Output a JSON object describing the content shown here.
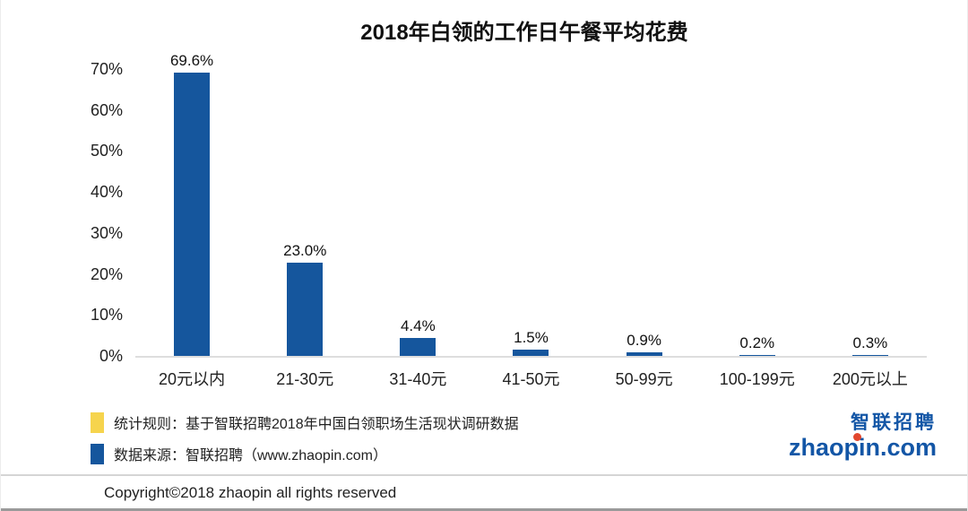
{
  "chart_data": {
    "type": "bar",
    "title": "2018年白领的工作日午餐平均花费",
    "categories": [
      "20元以内",
      "21-30元",
      "31-40元",
      "41-50元",
      "50-99元",
      "100-199元",
      "200元以上"
    ],
    "values": [
      69.6,
      23.0,
      4.4,
      1.5,
      0.9,
      0.2,
      0.3
    ],
    "value_labels": [
      "69.6%",
      "23.0%",
      "4.4%",
      "1.5%",
      "0.9%",
      "0.2%",
      "0.3%"
    ],
    "xlabel": "",
    "ylabel": "",
    "ylim": [
      0,
      70
    ],
    "ytick_labels": [
      "0%",
      "10%",
      "20%",
      "30%",
      "40%",
      "50%",
      "60%",
      "70%"
    ],
    "bar_color": "#15569d",
    "grid": false,
    "legend_position": "bottom-left"
  },
  "legend": {
    "items": [
      {
        "label": "统计规则：基于智联招聘2018年中国白领职场生活现状调研数据",
        "color": "#f6d44d"
      },
      {
        "label": "数据来源：智联招聘（www.zhaopin.com）",
        "color": "#15569d"
      }
    ]
  },
  "logo": {
    "cn": "智联招聘",
    "domain": "zhaopin.com",
    "dot_color": "#e2472e",
    "brand_blue": "#1356a6"
  },
  "footer": {
    "copyright": "Copyright©2018 zhaopin all rights reserved"
  }
}
